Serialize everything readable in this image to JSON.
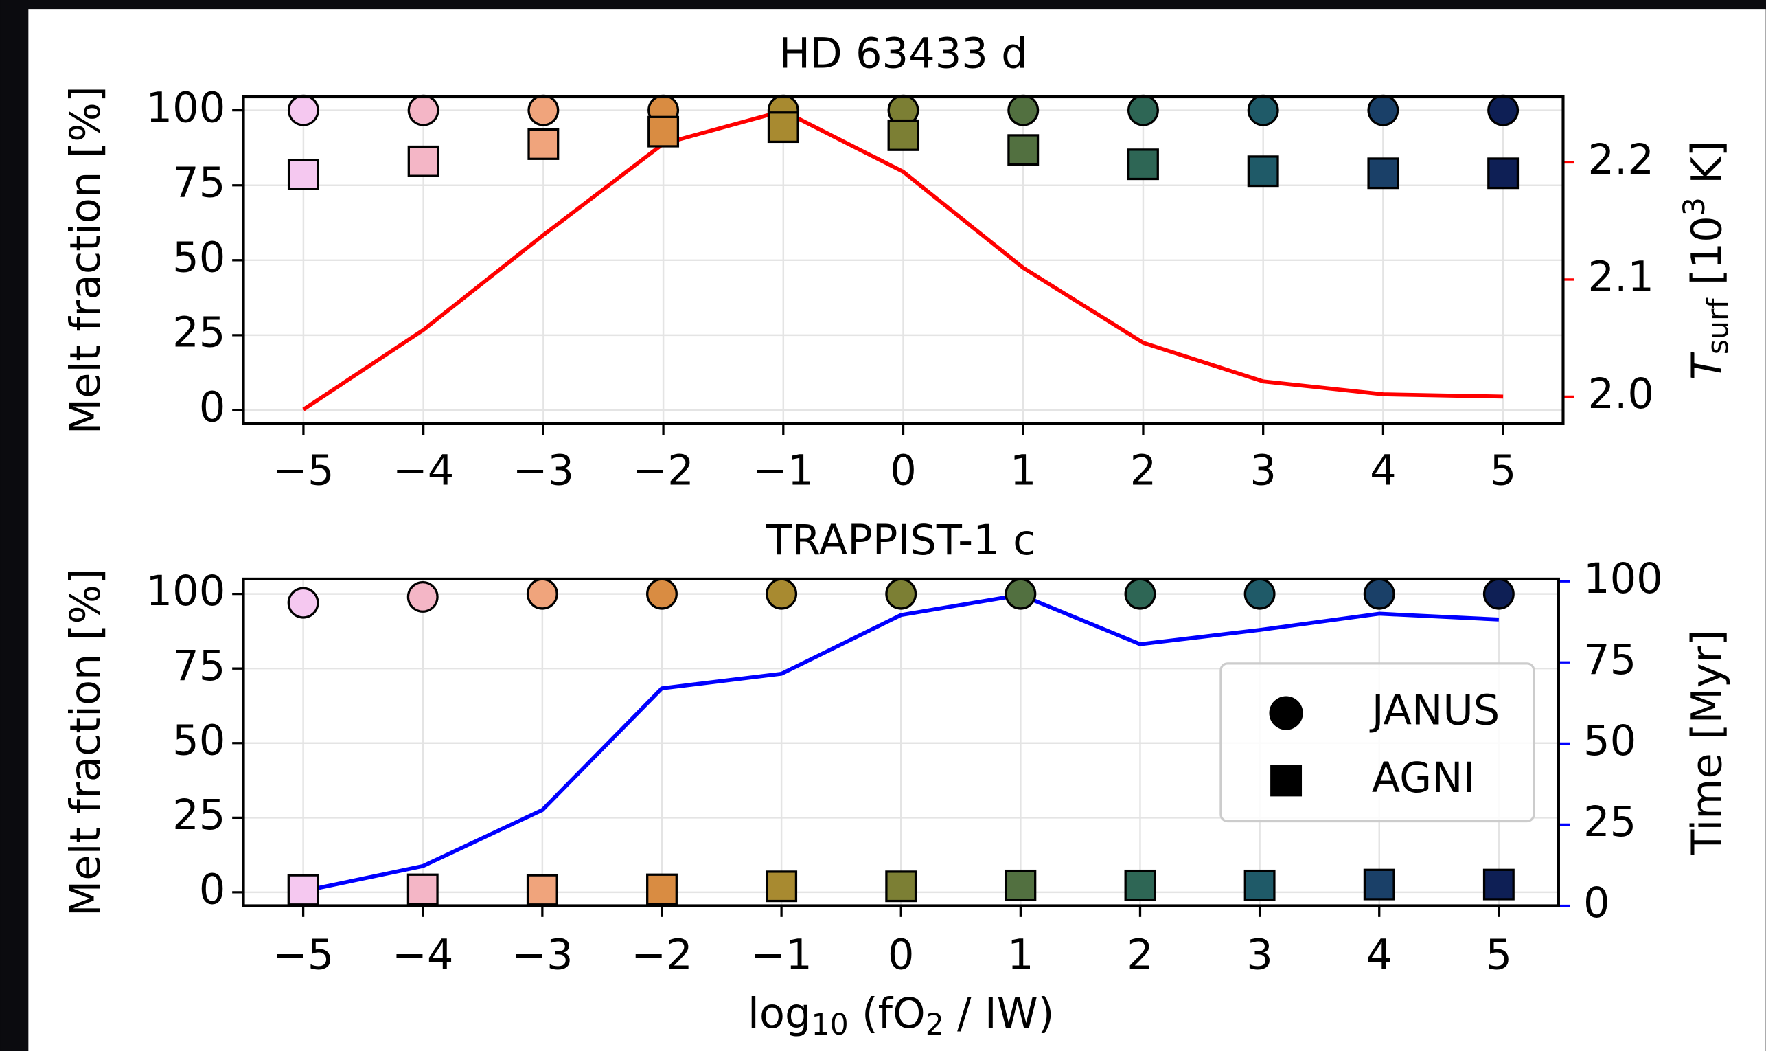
{
  "chart_data": [
    {
      "type": "scatter",
      "title": "HD 63433 d",
      "ylabel": "Melt fraction [%]",
      "y2label": [
        "T",
        "surf",
        " [10",
        "3",
        " K]"
      ],
      "x": [
        -5,
        -4,
        -3,
        -2,
        -1,
        0,
        1,
        2,
        3,
        4,
        5
      ],
      "series": [
        {
          "name": "JANUS",
          "marker": "circle",
          "colors": [
            "#f5c8f0",
            "#f4b6c6",
            "#f0a47c",
            "#d98c42",
            "#a88a30",
            "#7c7f34",
            "#527040",
            "#2e6655",
            "#1f5a68",
            "#1a4068",
            "#0e1f55"
          ],
          "values": [
            100,
            100,
            100,
            100,
            100,
            100,
            100,
            100,
            100,
            100,
            100
          ]
        },
        {
          "name": "AGNI",
          "marker": "square",
          "colors": [
            "#f5c8f0",
            "#f4b6c6",
            "#f0a47c",
            "#d98c42",
            "#a88a30",
            "#7c7f34",
            "#527040",
            "#2e6655",
            "#1f5a68",
            "#1a4068",
            "#0e1f55"
          ],
          "values": [
            78.6,
            83,
            88.7,
            92.9,
            94.4,
            91.7,
            86.8,
            82,
            79.7,
            79,
            79
          ]
        },
        {
          "type": "line",
          "axis": "y2",
          "color": "#ff0000",
          "values": [
            1.989,
            2.057,
            2.138,
            2.216,
            2.244,
            2.192,
            2.11,
            2.046,
            2.013,
            2.002,
            2.0
          ]
        }
      ],
      "xlim": [
        -5.5,
        5.5
      ],
      "xticks": [
        {
          "value": -5,
          "label": "−5"
        },
        {
          "value": -4,
          "label": "−4"
        },
        {
          "value": -3,
          "label": "−3"
        },
        {
          "value": -2,
          "label": "−2"
        },
        {
          "value": -1,
          "label": "−1"
        },
        0,
        1,
        2,
        3,
        4,
        5
      ],
      "ylim": [
        -4.5,
        104.5
      ],
      "yticks": [
        0,
        25,
        50,
        75,
        100
      ],
      "y2lim": [
        1.977,
        2.256
      ],
      "y2ticks": [
        {
          "value": 2,
          "label": "2.0"
        },
        2.1,
        2.2
      ],
      "grid": true
    },
    {
      "type": "scatter",
      "title": "TRAPPIST-1 c",
      "ylabel": "Melt fraction [%]",
      "y2label": "Time [Myr]",
      "xlabel": [
        "log",
        "10",
        " (fO",
        "2",
        " / IW)"
      ],
      "x": [
        -5,
        -4,
        -3,
        -2,
        -1,
        0,
        1,
        2,
        3,
        4,
        5
      ],
      "series": [
        {
          "name": "JANUS",
          "marker": "circle",
          "colors": [
            "#f5c8f0",
            "#f4b6c6",
            "#f0a47c",
            "#d98c42",
            "#a88a30",
            "#7c7f34",
            "#527040",
            "#2e6655",
            "#1f5a68",
            "#1a4068",
            "#0e1f55"
          ],
          "values": [
            97,
            99,
            100,
            100,
            100,
            100,
            100,
            100,
            100,
            100,
            100
          ]
        },
        {
          "name": "AGNI",
          "marker": "square",
          "colors": [
            "#f5c8f0",
            "#f4b6c6",
            "#f0a47c",
            "#d98c42",
            "#a88a30",
            "#7c7f34",
            "#527040",
            "#2e6655",
            "#1f5a68",
            "#1a4068",
            "#0e1f55"
          ],
          "values": [
            0.8,
            1,
            0.8,
            1,
            2,
            2,
            2.3,
            2.3,
            2.3,
            2.6,
            2.6
          ]
        },
        {
          "type": "line",
          "axis": "y2",
          "color": "#0000ff",
          "values": [
            4.5,
            12.2,
            29.5,
            67,
            71.5,
            89.6,
            95.8,
            80.6,
            85,
            90,
            88.2
          ]
        }
      ],
      "xlim": [
        -5.5,
        5.5
      ],
      "xticks": [
        {
          "value": -5,
          "label": "−5"
        },
        {
          "value": -4,
          "label": "−4"
        },
        {
          "value": -3,
          "label": "−3"
        },
        {
          "value": -2,
          "label": "−2"
        },
        {
          "value": -1,
          "label": "−1"
        },
        0,
        1,
        2,
        3,
        4,
        5
      ],
      "ylim": [
        -4.5,
        105
      ],
      "yticks": [
        0,
        25,
        50,
        75,
        100
      ],
      "y2lim": [
        0,
        100.7
      ],
      "y2ticks": [
        0,
        25,
        50,
        75,
        100
      ],
      "grid": true,
      "legend": "center right"
    }
  ]
}
